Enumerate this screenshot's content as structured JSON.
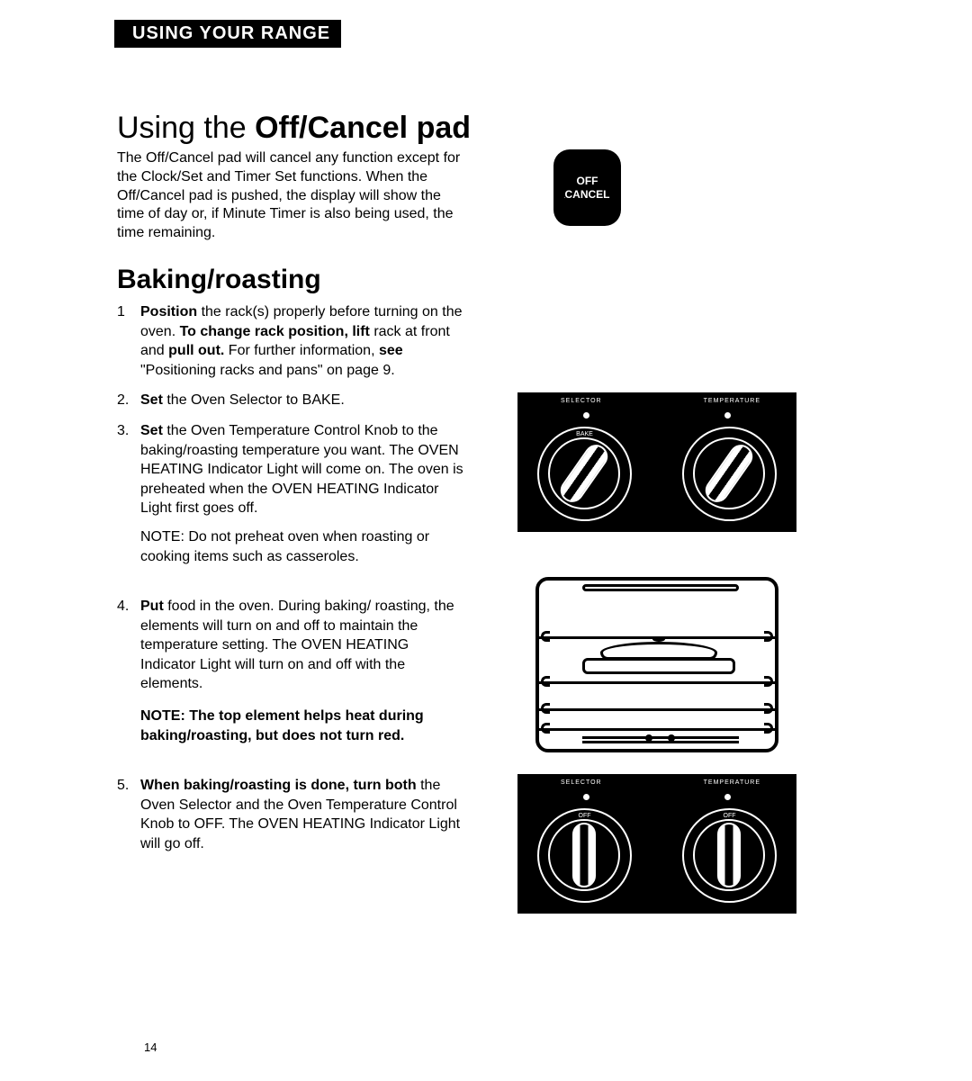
{
  "header": {
    "title": "USING YOUR RANGE"
  },
  "section1": {
    "title_prefix": "Using the ",
    "title_bold": "Off/Cancel pad",
    "body": "The Off/Cancel pad will cancel any function except for the Clock/Set and Timer Set functions. When the Off/Cancel pad is pushed, the display will show the time of day or, if Minute Timer is also being used, the time remaining.",
    "button": {
      "line1": "OFF",
      "line2": "CANCEL"
    }
  },
  "section2": {
    "title": "Baking/roasting",
    "steps": [
      {
        "num": "1",
        "parts": [
          {
            "bold": true,
            "text": "Position "
          },
          {
            "bold": false,
            "text": "the rack(s) properly before turning on the oven. "
          },
          {
            "bold": true,
            "text": "To change rack position, lift "
          },
          {
            "bold": false,
            "text": "rack at front and "
          },
          {
            "bold": true,
            "text": "pull out. "
          },
          {
            "bold": false,
            "text": "For further information, "
          },
          {
            "bold": true,
            "text": "see "
          },
          {
            "bold": false,
            "text": "\"Positioning racks and pans\" on page 9."
          }
        ]
      },
      {
        "num": "2.",
        "parts": [
          {
            "bold": true,
            "text": "Set "
          },
          {
            "bold": false,
            "text": "the Oven Selector to BAKE."
          }
        ]
      },
      {
        "num": "3.",
        "parts": [
          {
            "bold": true,
            "text": "Set "
          },
          {
            "bold": false,
            "text": "the Oven Temperature Control Knob to the baking/roasting temperature you want. The OVEN HEATING Indicator Light will come on. The oven is preheated when the OVEN HEATING Indicator Light first goes off."
          }
        ],
        "note": "NOTE: Do not preheat oven when roasting or cooking items such as casseroles."
      },
      {
        "num": "4.",
        "parts": [
          {
            "bold": true,
            "text": "Put "
          },
          {
            "bold": false,
            "text": "food in the oven. During baking/ roasting, the elements will turn on and off to maintain the temperature setting. The OVEN HEATING Indicator Light will turn on and off with the elements."
          }
        ],
        "note_bold": "NOTE: The top element helps heat during baking/roasting, but does not turn red."
      },
      {
        "num": "5.",
        "parts": [
          {
            "bold": true,
            "text": "When baking/roasting is done, turn both "
          },
          {
            "bold": false,
            "text": "the Oven Selector and the Oven Temperature Control Knob to OFF. The OVEN HEATING Indicator Light will go off."
          }
        ]
      }
    ],
    "panel": {
      "selector_label": "SELECTOR",
      "temperature_label": "TEMPERATURE",
      "off_label": "OFF",
      "bake_label": "BAKE"
    }
  },
  "page_number": "14",
  "colors": {
    "bg": "#ffffff",
    "fg": "#000000"
  }
}
